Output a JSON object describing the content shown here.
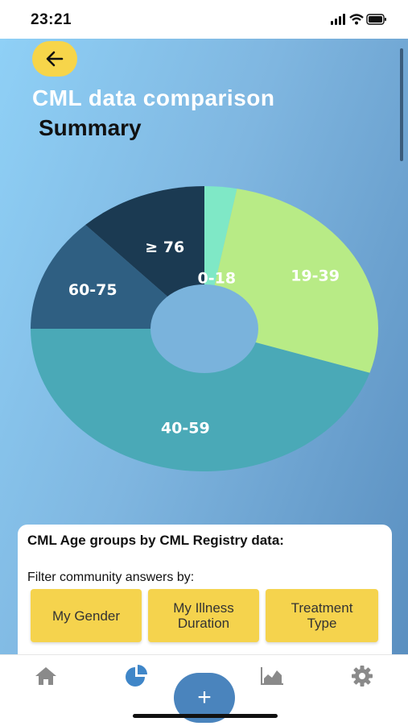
{
  "status": {
    "time": "23:21"
  },
  "header": {
    "title": "CML data comparison",
    "subtitle": "Summary"
  },
  "chart_data": {
    "type": "pie",
    "categories": [
      "0-18",
      "19-39",
      "40-59",
      "60-75",
      "≥ 76"
    ],
    "values": [
      3,
      27,
      45,
      13,
      12
    ],
    "colors": [
      "#7fe8c6",
      "#b8eb86",
      "#4aa9b7",
      "#2f5f82",
      "#1b3a52"
    ],
    "donut": true
  },
  "card": {
    "title": "CML Age groups by CML Registry data:",
    "filter_label": "Filter community answers by:",
    "filters": [
      {
        "line1": "My Gender",
        "line2": ""
      },
      {
        "line1": "My Illness",
        "line2": "Duration"
      },
      {
        "line1": "Treatment",
        "line2": "Type"
      }
    ]
  },
  "tabs": [
    "home",
    "pie-chart",
    "area-chart",
    "settings"
  ],
  "fab": {
    "label": "+"
  }
}
